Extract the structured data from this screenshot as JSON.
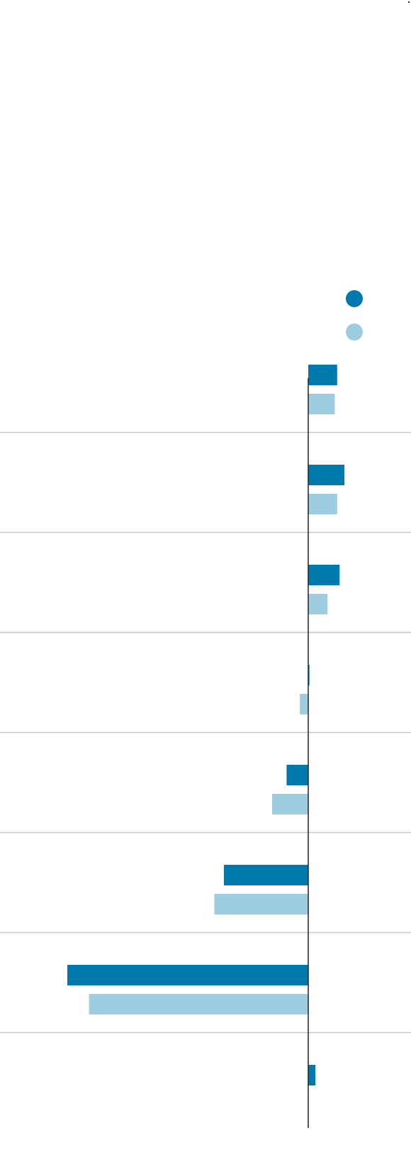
{
  "colors": {
    "series_dark": "#007aad",
    "series_light": "#9ecde1",
    "axis": "#222222",
    "gridline": "#c7c7c7",
    "background": "#ffffff"
  },
  "chart_data": {
    "type": "bar",
    "orientation": "horizontal",
    "title": "",
    "xlabel": "",
    "ylabel": "",
    "xlim": [
      -12,
      5
    ],
    "zero_line": true,
    "grid": "row separators",
    "legend_position": "top-right",
    "categories": [
      "",
      "",
      "",
      "",
      "",
      "",
      "",
      ""
    ],
    "series": [
      {
        "color": "#007aad",
        "values": [
          1.2,
          1.5,
          1.3,
          0.05,
          -0.9,
          -3.5,
          -10.0,
          0.3
        ]
      },
      {
        "color": "#9ecde1",
        "values": [
          1.1,
          1.2,
          0.8,
          -0.35,
          -1.5,
          -3.9,
          -9.1,
          null
        ]
      }
    ]
  }
}
